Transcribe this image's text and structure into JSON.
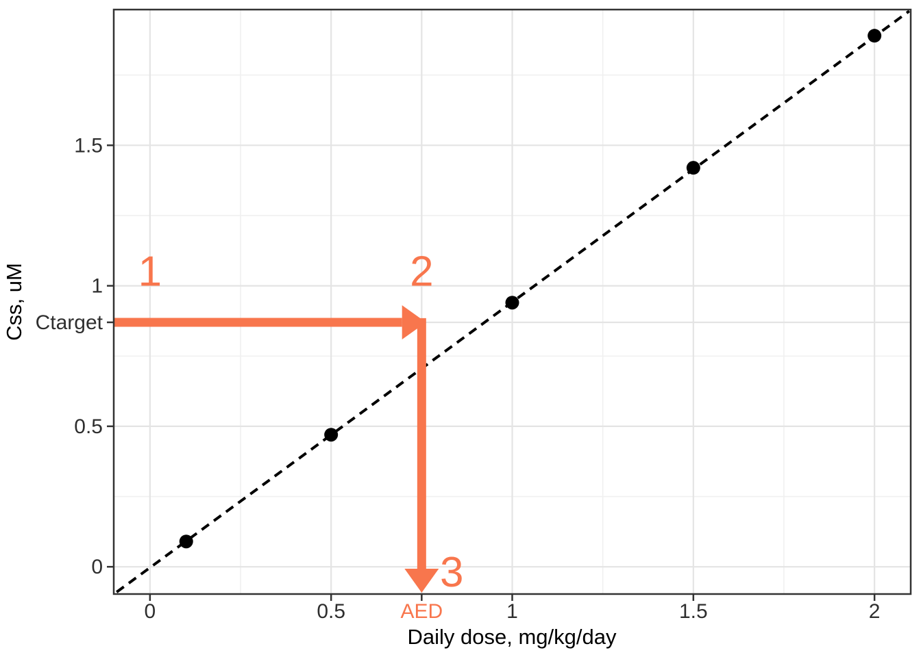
{
  "chart_data": {
    "type": "scatter",
    "title": "",
    "xlabel": "Daily dose, mg/kg/day",
    "ylabel": "Css, uM",
    "xlim": [
      -0.1,
      2.1
    ],
    "ylim": [
      -0.097,
      1.983
    ],
    "grid": true,
    "legend": "none",
    "x_ticks": [
      {
        "v": 0,
        "label": "0",
        "accent": false
      },
      {
        "v": 0.5,
        "label": "0.5",
        "accent": false
      },
      {
        "v": 0.75,
        "label": "AED",
        "accent": true
      },
      {
        "v": 1,
        "label": "1",
        "accent": false
      },
      {
        "v": 1.5,
        "label": "1.5",
        "accent": false
      },
      {
        "v": 2,
        "label": "2",
        "accent": false
      }
    ],
    "y_ticks": [
      {
        "v": 0,
        "label": "0",
        "accent": false
      },
      {
        "v": 0.5,
        "label": "0.5",
        "accent": false
      },
      {
        "v": 0.87,
        "label": "Ctarget",
        "accent": false
      },
      {
        "v": 1,
        "label": "1",
        "accent": false
      },
      {
        "v": 1.5,
        "label": "1.5",
        "accent": false
      }
    ],
    "x_minor": [
      0.25,
      1.25,
      1.75
    ],
    "y_minor": [
      0.25,
      0.75,
      1.25,
      1.75
    ],
    "points": [
      {
        "x": 0.1,
        "y": 0.09
      },
      {
        "x": 0.5,
        "y": 0.47
      },
      {
        "x": 1.0,
        "y": 0.94
      },
      {
        "x": 1.5,
        "y": 1.42
      },
      {
        "x": 2.0,
        "y": 1.89
      }
    ],
    "fit_line": {
      "style": "dashed",
      "slope": 0.945,
      "intercept": -0.003,
      "x_start": -0.092,
      "x_end": 2.096
    },
    "steps": [
      {
        "text": "1",
        "x": 0.0,
        "baseline_y": 1.0
      },
      {
        "text": "2",
        "x": 0.75,
        "baseline_y": 1.0
      },
      {
        "text": "3",
        "x": 0.833,
        "baseline_y": -0.07
      }
    ],
    "arrows": [
      {
        "x1": -0.1,
        "y1": 0.87,
        "x2": 0.762,
        "y2": 0.87
      },
      {
        "x1": 0.75,
        "y1": 0.885,
        "x2": 0.75,
        "y2": -0.092
      }
    ],
    "colors": {
      "accent": "#f8764d",
      "point": "#000000",
      "fit_line": "#000000",
      "grid_major": "#e4e4e4",
      "grid_minor": "#f0f0f0",
      "axis_text": "#2e2e2e",
      "panel_border": "#333333",
      "background": "#ffffff"
    }
  }
}
